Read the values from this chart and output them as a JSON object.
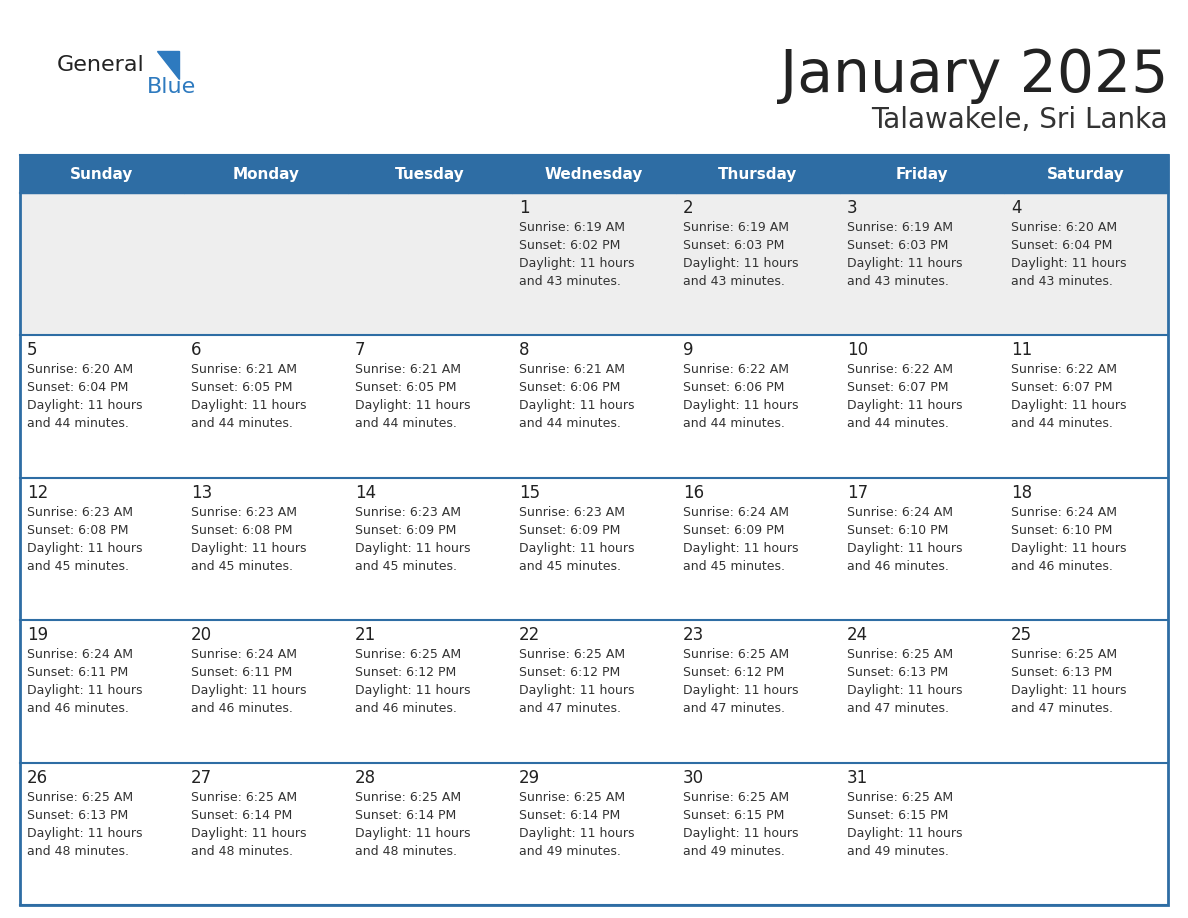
{
  "title": "January 2025",
  "subtitle": "Talawakele, Sri Lanka",
  "days_of_week": [
    "Sunday",
    "Monday",
    "Tuesday",
    "Wednesday",
    "Thursday",
    "Friday",
    "Saturday"
  ],
  "header_bg": "#2E6DA4",
  "header_text": "#FFFFFF",
  "row_bg_light": "#EEEEEE",
  "row_bg_white": "#FFFFFF",
  "cell_border": "#2E6DA4",
  "day_number_color": "#222222",
  "info_text_color": "#333333",
  "title_color": "#222222",
  "subtitle_color": "#333333",
  "logo_general_color": "#222222",
  "logo_blue_color": "#2E7ABF",
  "calendar_data": [
    {
      "day": 1,
      "col": 3,
      "row": 0,
      "sunrise": "6:19 AM",
      "sunset": "6:02 PM",
      "daylight_line1": "Daylight: 11 hours",
      "daylight_line2": "and 43 minutes."
    },
    {
      "day": 2,
      "col": 4,
      "row": 0,
      "sunrise": "6:19 AM",
      "sunset": "6:03 PM",
      "daylight_line1": "Daylight: 11 hours",
      "daylight_line2": "and 43 minutes."
    },
    {
      "day": 3,
      "col": 5,
      "row": 0,
      "sunrise": "6:19 AM",
      "sunset": "6:03 PM",
      "daylight_line1": "Daylight: 11 hours",
      "daylight_line2": "and 43 minutes."
    },
    {
      "day": 4,
      "col": 6,
      "row": 0,
      "sunrise": "6:20 AM",
      "sunset": "6:04 PM",
      "daylight_line1": "Daylight: 11 hours",
      "daylight_line2": "and 43 minutes."
    },
    {
      "day": 5,
      "col": 0,
      "row": 1,
      "sunrise": "6:20 AM",
      "sunset": "6:04 PM",
      "daylight_line1": "Daylight: 11 hours",
      "daylight_line2": "and 44 minutes."
    },
    {
      "day": 6,
      "col": 1,
      "row": 1,
      "sunrise": "6:21 AM",
      "sunset": "6:05 PM",
      "daylight_line1": "Daylight: 11 hours",
      "daylight_line2": "and 44 minutes."
    },
    {
      "day": 7,
      "col": 2,
      "row": 1,
      "sunrise": "6:21 AM",
      "sunset": "6:05 PM",
      "daylight_line1": "Daylight: 11 hours",
      "daylight_line2": "and 44 minutes."
    },
    {
      "day": 8,
      "col": 3,
      "row": 1,
      "sunrise": "6:21 AM",
      "sunset": "6:06 PM",
      "daylight_line1": "Daylight: 11 hours",
      "daylight_line2": "and 44 minutes."
    },
    {
      "day": 9,
      "col": 4,
      "row": 1,
      "sunrise": "6:22 AM",
      "sunset": "6:06 PM",
      "daylight_line1": "Daylight: 11 hours",
      "daylight_line2": "and 44 minutes."
    },
    {
      "day": 10,
      "col": 5,
      "row": 1,
      "sunrise": "6:22 AM",
      "sunset": "6:07 PM",
      "daylight_line1": "Daylight: 11 hours",
      "daylight_line2": "and 44 minutes."
    },
    {
      "day": 11,
      "col": 6,
      "row": 1,
      "sunrise": "6:22 AM",
      "sunset": "6:07 PM",
      "daylight_line1": "Daylight: 11 hours",
      "daylight_line2": "and 44 minutes."
    },
    {
      "day": 12,
      "col": 0,
      "row": 2,
      "sunrise": "6:23 AM",
      "sunset": "6:08 PM",
      "daylight_line1": "Daylight: 11 hours",
      "daylight_line2": "and 45 minutes."
    },
    {
      "day": 13,
      "col": 1,
      "row": 2,
      "sunrise": "6:23 AM",
      "sunset": "6:08 PM",
      "daylight_line1": "Daylight: 11 hours",
      "daylight_line2": "and 45 minutes."
    },
    {
      "day": 14,
      "col": 2,
      "row": 2,
      "sunrise": "6:23 AM",
      "sunset": "6:09 PM",
      "daylight_line1": "Daylight: 11 hours",
      "daylight_line2": "and 45 minutes."
    },
    {
      "day": 15,
      "col": 3,
      "row": 2,
      "sunrise": "6:23 AM",
      "sunset": "6:09 PM",
      "daylight_line1": "Daylight: 11 hours",
      "daylight_line2": "and 45 minutes."
    },
    {
      "day": 16,
      "col": 4,
      "row": 2,
      "sunrise": "6:24 AM",
      "sunset": "6:09 PM",
      "daylight_line1": "Daylight: 11 hours",
      "daylight_line2": "and 45 minutes."
    },
    {
      "day": 17,
      "col": 5,
      "row": 2,
      "sunrise": "6:24 AM",
      "sunset": "6:10 PM",
      "daylight_line1": "Daylight: 11 hours",
      "daylight_line2": "and 46 minutes."
    },
    {
      "day": 18,
      "col": 6,
      "row": 2,
      "sunrise": "6:24 AM",
      "sunset": "6:10 PM",
      "daylight_line1": "Daylight: 11 hours",
      "daylight_line2": "and 46 minutes."
    },
    {
      "day": 19,
      "col": 0,
      "row": 3,
      "sunrise": "6:24 AM",
      "sunset": "6:11 PM",
      "daylight_line1": "Daylight: 11 hours",
      "daylight_line2": "and 46 minutes."
    },
    {
      "day": 20,
      "col": 1,
      "row": 3,
      "sunrise": "6:24 AM",
      "sunset": "6:11 PM",
      "daylight_line1": "Daylight: 11 hours",
      "daylight_line2": "and 46 minutes."
    },
    {
      "day": 21,
      "col": 2,
      "row": 3,
      "sunrise": "6:25 AM",
      "sunset": "6:12 PM",
      "daylight_line1": "Daylight: 11 hours",
      "daylight_line2": "and 46 minutes."
    },
    {
      "day": 22,
      "col": 3,
      "row": 3,
      "sunrise": "6:25 AM",
      "sunset": "6:12 PM",
      "daylight_line1": "Daylight: 11 hours",
      "daylight_line2": "and 47 minutes."
    },
    {
      "day": 23,
      "col": 4,
      "row": 3,
      "sunrise": "6:25 AM",
      "sunset": "6:12 PM",
      "daylight_line1": "Daylight: 11 hours",
      "daylight_line2": "and 47 minutes."
    },
    {
      "day": 24,
      "col": 5,
      "row": 3,
      "sunrise": "6:25 AM",
      "sunset": "6:13 PM",
      "daylight_line1": "Daylight: 11 hours",
      "daylight_line2": "and 47 minutes."
    },
    {
      "day": 25,
      "col": 6,
      "row": 3,
      "sunrise": "6:25 AM",
      "sunset": "6:13 PM",
      "daylight_line1": "Daylight: 11 hours",
      "daylight_line2": "and 47 minutes."
    },
    {
      "day": 26,
      "col": 0,
      "row": 4,
      "sunrise": "6:25 AM",
      "sunset": "6:13 PM",
      "daylight_line1": "Daylight: 11 hours",
      "daylight_line2": "and 48 minutes."
    },
    {
      "day": 27,
      "col": 1,
      "row": 4,
      "sunrise": "6:25 AM",
      "sunset": "6:14 PM",
      "daylight_line1": "Daylight: 11 hours",
      "daylight_line2": "and 48 minutes."
    },
    {
      "day": 28,
      "col": 2,
      "row": 4,
      "sunrise": "6:25 AM",
      "sunset": "6:14 PM",
      "daylight_line1": "Daylight: 11 hours",
      "daylight_line2": "and 48 minutes."
    },
    {
      "day": 29,
      "col": 3,
      "row": 4,
      "sunrise": "6:25 AM",
      "sunset": "6:14 PM",
      "daylight_line1": "Daylight: 11 hours",
      "daylight_line2": "and 49 minutes."
    },
    {
      "day": 30,
      "col": 4,
      "row": 4,
      "sunrise": "6:25 AM",
      "sunset": "6:15 PM",
      "daylight_line1": "Daylight: 11 hours",
      "daylight_line2": "and 49 minutes."
    },
    {
      "day": 31,
      "col": 5,
      "row": 4,
      "sunrise": "6:25 AM",
      "sunset": "6:15 PM",
      "daylight_line1": "Daylight: 11 hours",
      "daylight_line2": "and 49 minutes."
    }
  ]
}
